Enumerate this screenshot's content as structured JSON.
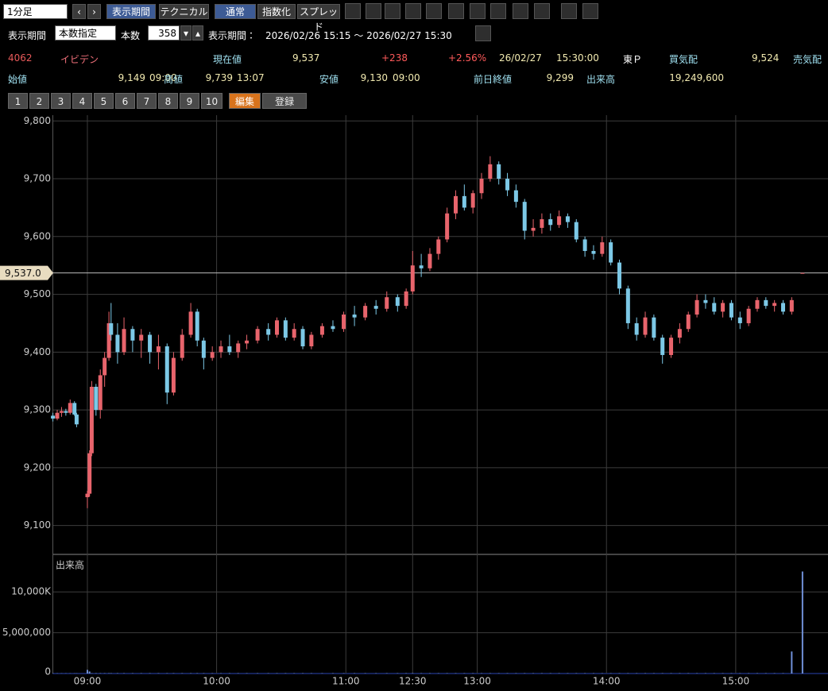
{
  "toolbar": {
    "interval": "1分足",
    "buttons": [
      "表示期間",
      "テクニカル",
      "通常",
      "指数化",
      "スプレッド"
    ]
  },
  "period_bar": {
    "label": "表示期間",
    "mode": "本数指定",
    "count_label": "本数",
    "count": "358",
    "range_label": "表示期間：",
    "range": "2026/02/26 15:15 〜 2026/02/27 15:30"
  },
  "quote": {
    "code": "4062",
    "name": "イビデン",
    "price_label": "現在値",
    "price": "9,537",
    "change": "+238",
    "change_pct": "+2.56%",
    "date": "26/02/27",
    "time": "15:30:00",
    "market": "東Ｐ",
    "bid_label": "買気配",
    "bid": "9,524",
    "ask_label": "売気配"
  },
  "stats": [
    {
      "label": "始値",
      "value": "9,149",
      "time": "09:00"
    },
    {
      "label": "高値",
      "value": "9,739",
      "time": "13:07"
    },
    {
      "label": "安値",
      "value": "9,130",
      "time": "09:00"
    },
    {
      "label": "前日終値",
      "value": "9,299"
    },
    {
      "label": "出来高",
      "value": "19,249,600"
    }
  ],
  "tabs": [
    "1",
    "2",
    "3",
    "4",
    "5",
    "6",
    "7",
    "8",
    "9",
    "10",
    "編集",
    "登録"
  ],
  "chart_data": {
    "type": "candlestick",
    "x": [
      0,
      2,
      4,
      6,
      8,
      10,
      11,
      16,
      17,
      18,
      20,
      22,
      24,
      26,
      27,
      30,
      33,
      37,
      41,
      45,
      49,
      53,
      56,
      60,
      64,
      67,
      70,
      74,
      78,
      82,
      86,
      90,
      95,
      100,
      104,
      108,
      112,
      116,
      120,
      125,
      130,
      135,
      140,
      145,
      150,
      155,
      160,
      164,
      167,
      171,
      175,
      179,
      183,
      187,
      191,
      195,
      199,
      203,
      207,
      211,
      215,
      219,
      223,
      227,
      231,
      235,
      239,
      243,
      247,
      251,
      255,
      259,
      263,
      267,
      271,
      275,
      279,
      283,
      287,
      291,
      295,
      299,
      303,
      307,
      311,
      315,
      319,
      323,
      327,
      331,
      335,
      339,
      343,
      348
    ],
    "open": [
      9290,
      9285,
      9295,
      9298,
      9295,
      9312,
      9292,
      9149,
      9155,
      9225,
      9340,
      9300,
      9360,
      9390,
      9450,
      9430,
      9400,
      9440,
      9420,
      9430,
      9400,
      9410,
      9330,
      9390,
      9430,
      9470,
      9420,
      9390,
      9400,
      9410,
      9400,
      9415,
      9420,
      9440,
      9430,
      9455,
      9425,
      9440,
      9410,
      9430,
      9445,
      9440,
      9465,
      9460,
      9480,
      9475,
      9495,
      9480,
      9505,
      9550,
      9545,
      9570,
      9595,
      9640,
      9670,
      9650,
      9675,
      9700,
      9725,
      9700,
      9680,
      9660,
      9610,
      9615,
      9630,
      9620,
      9635,
      9625,
      9595,
      9575,
      9570,
      9590,
      9555,
      9510,
      9450,
      9430,
      9460,
      9425,
      9395,
      9425,
      9440,
      9465,
      9490,
      9485,
      9470,
      9485,
      9460,
      9450,
      9475,
      9490,
      9480,
      9485,
      9470,
      9537
    ],
    "high": [
      9295,
      9300,
      9305,
      9302,
      9318,
      9315,
      9295,
      9160,
      9230,
      9350,
      9345,
      9370,
      9400,
      9470,
      9485,
      9450,
      9460,
      9445,
      9440,
      9435,
      9430,
      9415,
      9400,
      9440,
      9485,
      9475,
      9425,
      9410,
      9420,
      9430,
      9420,
      9430,
      9445,
      9450,
      9460,
      9460,
      9450,
      9445,
      9435,
      9450,
      9455,
      9470,
      9480,
      9485,
      9490,
      9505,
      9500,
      9510,
      9575,
      9570,
      9580,
      9600,
      9650,
      9680,
      9690,
      9680,
      9710,
      9739,
      9730,
      9710,
      9690,
      9665,
      9630,
      9640,
      9640,
      9645,
      9640,
      9630,
      9600,
      9585,
      9600,
      9595,
      9560,
      9515,
      9460,
      9470,
      9465,
      9430,
      9430,
      9450,
      9470,
      9500,
      9500,
      9495,
      9490,
      9490,
      9470,
      9480,
      9495,
      9495,
      9490,
      9490,
      9495,
      9537
    ],
    "low": [
      9280,
      9282,
      9288,
      9290,
      9292,
      9290,
      9270,
      9130,
      9150,
      9220,
      9290,
      9285,
      9340,
      9385,
      9420,
      9380,
      9395,
      9400,
      9390,
      9380,
      9370,
      9310,
      9325,
      9385,
      9425,
      9410,
      9370,
      9385,
      9390,
      9395,
      9390,
      9405,
      9415,
      9420,
      9425,
      9420,
      9420,
      9405,
      9405,
      9425,
      9435,
      9435,
      9445,
      9455,
      9465,
      9470,
      9470,
      9475,
      9500,
      9530,
      9540,
      9560,
      9590,
      9630,
      9645,
      9640,
      9665,
      9695,
      9690,
      9670,
      9650,
      9595,
      9600,
      9605,
      9610,
      9615,
      9615,
      9590,
      9565,
      9560,
      9565,
      9550,
      9500,
      9440,
      9420,
      9425,
      9420,
      9380,
      9390,
      9415,
      9435,
      9460,
      9475,
      9465,
      9460,
      9455,
      9440,
      9445,
      9470,
      9475,
      9470,
      9465,
      9465,
      9537
    ],
    "close": [
      9285,
      9295,
      9298,
      9295,
      9312,
      9292,
      9275,
      9155,
      9225,
      9340,
      9300,
      9360,
      9390,
      9450,
      9430,
      9400,
      9440,
      9420,
      9430,
      9400,
      9410,
      9330,
      9390,
      9430,
      9470,
      9420,
      9390,
      9400,
      9410,
      9400,
      9415,
      9420,
      9440,
      9430,
      9455,
      9425,
      9440,
      9410,
      9430,
      9445,
      9440,
      9465,
      9460,
      9480,
      9475,
      9495,
      9480,
      9505,
      9550,
      9545,
      9570,
      9595,
      9640,
      9670,
      9650,
      9675,
      9700,
      9725,
      9700,
      9680,
      9660,
      9610,
      9615,
      9630,
      9620,
      9635,
      9625,
      9595,
      9575,
      9570,
      9590,
      9555,
      9510,
      9450,
      9430,
      9460,
      9425,
      9395,
      9425,
      9440,
      9465,
      9490,
      9485,
      9470,
      9485,
      9460,
      9450,
      9475,
      9490,
      9480,
      9485,
      9470,
      9490,
      9537
    ],
    "colors": {
      "up": "#e8646c",
      "down": "#7cc8e6"
    },
    "xlim": [
      0,
      358
    ],
    "xticks": [
      {
        "value": 16,
        "label": "09:00"
      },
      {
        "value": 76,
        "label": "10:00"
      },
      {
        "value": 136,
        "label": "11:00"
      },
      {
        "value": 167,
        "label": "12:30"
      },
      {
        "value": 197,
        "label": "13:00"
      },
      {
        "value": 257,
        "label": "14:00"
      },
      {
        "value": 317,
        "label": "15:00"
      }
    ],
    "ylim": [
      9050,
      9810
    ],
    "yticks": [
      {
        "value": 9100,
        "label": "9,100"
      },
      {
        "value": 9200,
        "label": "9,200"
      },
      {
        "value": 9300,
        "label": "9,300"
      },
      {
        "value": 9400,
        "label": "9,400"
      },
      {
        "value": 9500,
        "label": "9,500"
      },
      {
        "value": 9600,
        "label": "9,600"
      },
      {
        "value": 9700,
        "label": "9,700"
      },
      {
        "value": 9800,
        "label": "9,800"
      }
    ],
    "grid": true,
    "price_line": {
      "value": 9537,
      "label": "9,537.0"
    },
    "volume": {
      "title": "出来高",
      "color": "#6f8fd6",
      "values": [
        30000,
        30000,
        30000,
        30000,
        30000,
        30000,
        30000,
        450000,
        250000,
        50000,
        50000,
        50000,
        50000,
        50000,
        50000,
        50000,
        50000,
        50000,
        50000,
        50000,
        50000,
        50000,
        50000,
        50000,
        50000,
        50000,
        50000,
        50000,
        50000,
        50000,
        50000,
        50000,
        50000,
        50000,
        50000,
        50000,
        50000,
        50000,
        50000,
        50000,
        50000,
        50000,
        50000,
        50000,
        50000,
        50000,
        50000,
        50000,
        50000,
        50000,
        50000,
        50000,
        50000,
        50000,
        50000,
        50000,
        50000,
        50000,
        50000,
        50000,
        50000,
        50000,
        50000,
        50000,
        50000,
        50000,
        50000,
        50000,
        50000,
        50000,
        50000,
        50000,
        50000,
        50000,
        50000,
        50000,
        50000,
        50000,
        50000,
        50000,
        50000,
        50000,
        50000,
        50000,
        50000,
        50000,
        50000,
        50000,
        50000,
        50000,
        50000,
        50000,
        2700000,
        12500000
      ],
      "ylim": [
        0,
        14400000
      ],
      "yticks": [
        {
          "value": 0,
          "label": "0"
        },
        {
          "value": 5000000,
          "label": "5,000,000"
        },
        {
          "value": 10000000,
          "label": "10,000K"
        }
      ]
    }
  }
}
